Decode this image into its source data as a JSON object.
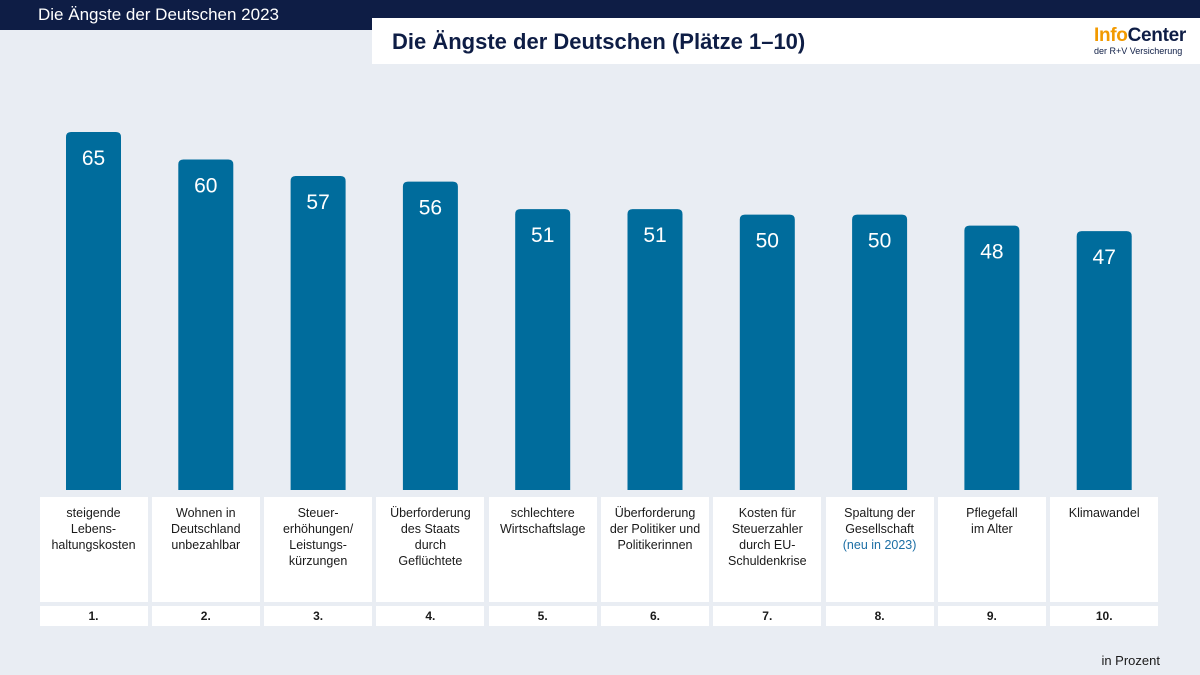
{
  "header": {
    "slide_title": "Die Ängste der Deutschen 2023",
    "main_title": "Die Ängste der Deutschen (Plätze 1–10)"
  },
  "logo": {
    "info": "Info",
    "center": "Center",
    "subtitle": "der R+V Versicherung"
  },
  "colors": {
    "bar": "#006c9c",
    "header_bg": "#0e1d45",
    "background": "#e9edf3",
    "note": "#1d6fa5"
  },
  "chart_data": {
    "type": "bar",
    "title": "Die Ängste der Deutschen (Plätze 1–10)",
    "ylabel": "",
    "unit_note": "in Prozent",
    "ylim": [
      0,
      65
    ],
    "values": [
      65,
      60,
      57,
      56,
      51,
      51,
      50,
      50,
      48,
      47
    ],
    "ranks": [
      "1.",
      "2.",
      "3.",
      "4.",
      "5.",
      "6.",
      "7.",
      "8.",
      "9.",
      "10."
    ],
    "categories": [
      {
        "lines": [
          "steigende",
          "Lebens-",
          "haltungskosten"
        ],
        "note": ""
      },
      {
        "lines": [
          "Wohnen in",
          "Deutschland",
          "unbezahlbar"
        ],
        "note": ""
      },
      {
        "lines": [
          "Steuer-",
          "erhöhungen/",
          "Leistungs-",
          "kürzungen"
        ],
        "note": ""
      },
      {
        "lines": [
          "Überforderung",
          "des Staats",
          "durch",
          "Geflüchtete"
        ],
        "note": ""
      },
      {
        "lines": [
          "schlechtere",
          "Wirtschaftslage"
        ],
        "note": ""
      },
      {
        "lines": [
          "Überforderung",
          "der Politiker und",
          "Politikerinnen"
        ],
        "note": ""
      },
      {
        "lines": [
          "Kosten für",
          "Steuerzahler",
          "durch EU-",
          "Schuldenkrise"
        ],
        "note": ""
      },
      {
        "lines": [
          "Spaltung der",
          "Gesellschaft"
        ],
        "note": "(neu in 2023)"
      },
      {
        "lines": [
          "Pflegefall",
          "im Alter"
        ],
        "note": ""
      },
      {
        "lines": [
          "Klimawandel"
        ],
        "note": ""
      }
    ]
  }
}
